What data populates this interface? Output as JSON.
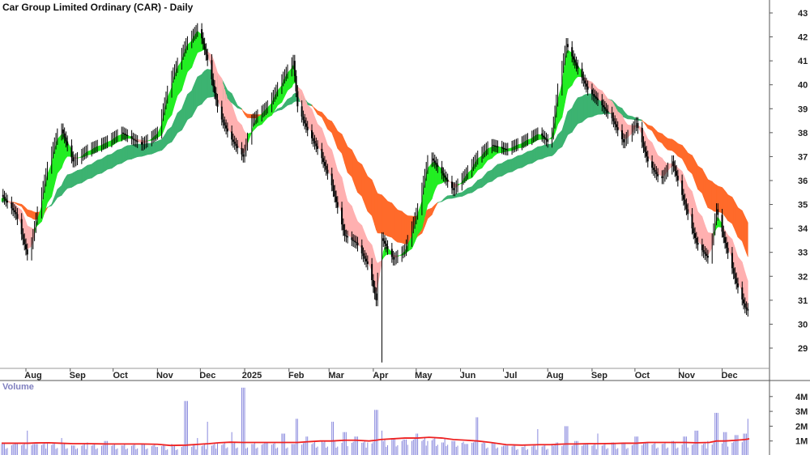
{
  "title": "Car Group Limited Ordinary (CAR) - Daily",
  "volume_label": "Volume",
  "colors": {
    "short_up": "#22ee22",
    "short_down": "#ffb0b0",
    "long_up": "#3cb371",
    "long_down": "#ff6a2a",
    "candle": "#000000",
    "volume": "#8888dd",
    "volume_avg": "#ee2222"
  },
  "chart_data": {
    "type": "line",
    "price_axis": {
      "ticks": [
        29,
        30,
        31,
        32,
        33,
        34,
        35,
        36,
        37,
        38,
        39,
        40,
        41,
        42,
        43
      ],
      "ylim": [
        28.2,
        43.5
      ],
      "side": "right"
    },
    "x_axis": {
      "tick_labels": [
        "Aug",
        "Sep",
        "Oct",
        "Nov",
        "Dec",
        "2025",
        "Feb",
        "Mar",
        "Apr",
        "May",
        "Jun",
        "Jul",
        "Aug",
        "Sep",
        "Oct",
        "Nov",
        "Dec"
      ],
      "tick_dates": [
        "2024-08-01",
        "2024-09-01",
        "2024-10-01",
        "2024-11-01",
        "2024-12-01",
        "2025-01-01",
        "2025-02-01",
        "2025-03-01",
        "2025-04-01",
        "2025-05-01",
        "2025-06-01",
        "2025-07-01",
        "2025-08-01",
        "2025-09-01",
        "2025-10-01",
        "2025-11-01",
        "2025-12-01"
      ]
    },
    "price": {
      "dates": [
        "2024-07-15",
        "2024-07-25",
        "2024-08-03",
        "2024-08-08",
        "2024-08-17",
        "2024-08-25",
        "2024-09-03",
        "2024-09-14",
        "2024-09-26",
        "2024-10-07",
        "2024-10-21",
        "2024-11-01",
        "2024-11-10",
        "2024-11-21",
        "2024-11-30",
        "2024-12-07",
        "2024-12-14",
        "2024-12-22",
        "2024-12-31",
        "2025-01-06",
        "2025-01-17",
        "2025-01-28",
        "2025-02-04",
        "2025-02-07",
        "2025-02-14",
        "2025-02-23",
        "2025-03-03",
        "2025-03-12",
        "2025-03-20",
        "2025-03-29",
        "2025-04-03",
        "2025-04-06",
        "2025-04-15",
        "2025-04-23",
        "2025-05-02",
        "2025-05-10",
        "2025-05-19",
        "2025-05-27",
        "2025-06-05",
        "2025-06-13",
        "2025-06-22",
        "2025-07-03",
        "2025-07-14",
        "2025-07-26",
        "2025-08-03",
        "2025-08-08",
        "2025-08-14",
        "2025-08-21",
        "2025-08-29",
        "2025-09-06",
        "2025-09-15",
        "2025-09-23",
        "2025-10-02",
        "2025-10-10",
        "2025-10-19",
        "2025-10-27",
        "2025-11-05",
        "2025-11-13",
        "2025-11-22",
        "2025-11-27",
        "2025-12-03",
        "2025-12-11",
        "2025-12-17",
        "2025-12-20"
      ],
      "close": [
        35.4,
        34.6,
        32.7,
        34.4,
        36.8,
        38.3,
        36.8,
        37.3,
        37.6,
        38.0,
        37.5,
        38.0,
        40.2,
        41.7,
        42.4,
        40.8,
        38.8,
        37.8,
        37.0,
        38.5,
        39.1,
        40.3,
        41.0,
        39.1,
        38.1,
        37.1,
        35.8,
        33.7,
        33.4,
        32.4,
        31.0,
        33.7,
        32.7,
        33.1,
        34.8,
        37.1,
        36.3,
        35.6,
        36.3,
        37.0,
        37.5,
        37.3,
        37.6,
        38.0,
        37.5,
        39.8,
        41.7,
        40.8,
        39.8,
        39.3,
        38.6,
        37.6,
        38.4,
        36.8,
        36.0,
        36.8,
        35.0,
        33.4,
        32.7,
        34.8,
        33.4,
        31.7,
        30.7,
        30.5
      ],
      "low_extremes": [
        {
          "date": "2025-04-07",
          "low": 28.4
        }
      ]
    },
    "volume": {
      "axis_ticks": [
        "1M",
        "2M",
        "3M",
        "4M"
      ],
      "axis_values": [
        1,
        2,
        3,
        4
      ],
      "unit": "M",
      "dates": [
        "2024-07-15",
        "2024-07-25",
        "2024-08-03",
        "2024-08-08",
        "2024-08-17",
        "2024-08-25",
        "2024-09-03",
        "2024-09-14",
        "2024-09-26",
        "2024-10-07",
        "2024-10-21",
        "2024-11-01",
        "2024-11-10",
        "2024-11-21",
        "2024-11-30",
        "2024-12-07",
        "2024-12-14",
        "2024-12-22",
        "2024-12-31",
        "2025-01-06",
        "2025-01-17",
        "2025-01-28",
        "2025-02-04",
        "2025-02-07",
        "2025-02-14",
        "2025-02-23",
        "2025-03-03",
        "2025-03-12",
        "2025-03-20",
        "2025-03-29",
        "2025-04-03",
        "2025-04-06",
        "2025-04-15",
        "2025-04-23",
        "2025-05-02",
        "2025-05-10",
        "2025-05-19",
        "2025-05-27",
        "2025-06-05",
        "2025-06-13",
        "2025-06-22",
        "2025-07-03",
        "2025-07-14",
        "2025-07-26",
        "2025-08-03",
        "2025-08-08",
        "2025-08-14",
        "2025-08-21",
        "2025-08-29",
        "2025-09-06",
        "2025-09-15",
        "2025-09-23",
        "2025-10-02",
        "2025-10-10",
        "2025-10-19",
        "2025-10-27",
        "2025-11-05",
        "2025-11-13",
        "2025-11-22",
        "2025-11-27",
        "2025-12-03",
        "2025-12-11",
        "2025-12-17",
        "2025-12-20"
      ],
      "values": [
        0.8,
        0.9,
        1.7,
        0.8,
        0.9,
        1.2,
        0.7,
        0.9,
        1.0,
        0.7,
        0.8,
        0.6,
        0.8,
        3.7,
        1.2,
        2.3,
        0.9,
        1.6,
        4.6,
        0.8,
        0.9,
        1.5,
        0.8,
        2.5,
        1.3,
        1.0,
        2.3,
        1.6,
        1.3,
        0.9,
        3.1,
        1.7,
        1.2,
        1.1,
        1.5,
        1.0,
        0.9,
        1.0,
        0.8,
        2.6,
        0.9,
        0.7,
        0.6,
        1.8,
        0.8,
        0.9,
        2.0,
        1.0,
        0.8,
        1.5,
        0.9,
        0.9,
        1.3,
        0.9,
        0.8,
        1.0,
        1.3,
        1.7,
        1.0,
        2.9,
        1.6,
        1.4,
        1.5,
        2.5
      ],
      "average": [
        0.85,
        0.85,
        0.85,
        0.87,
        0.88,
        0.85,
        0.82,
        0.82,
        0.8,
        0.8,
        0.8,
        0.78,
        0.7,
        0.72,
        0.78,
        0.82,
        0.88,
        0.92,
        0.9,
        0.9,
        0.9,
        0.9,
        0.9,
        0.9,
        0.95,
        1.0,
        1.0,
        1.05,
        1.05,
        1.0,
        1.05,
        1.1,
        1.15,
        1.2,
        1.2,
        1.25,
        1.2,
        1.1,
        1.05,
        1.0,
        0.9,
        0.75,
        0.72,
        0.75,
        0.75,
        0.78,
        0.8,
        0.8,
        0.82,
        0.82,
        0.83,
        0.85,
        0.85,
        0.9,
        0.9,
        0.9,
        0.9,
        0.88,
        0.9,
        1.0,
        1.0,
        1.05,
        1.1,
        1.15
      ]
    }
  }
}
